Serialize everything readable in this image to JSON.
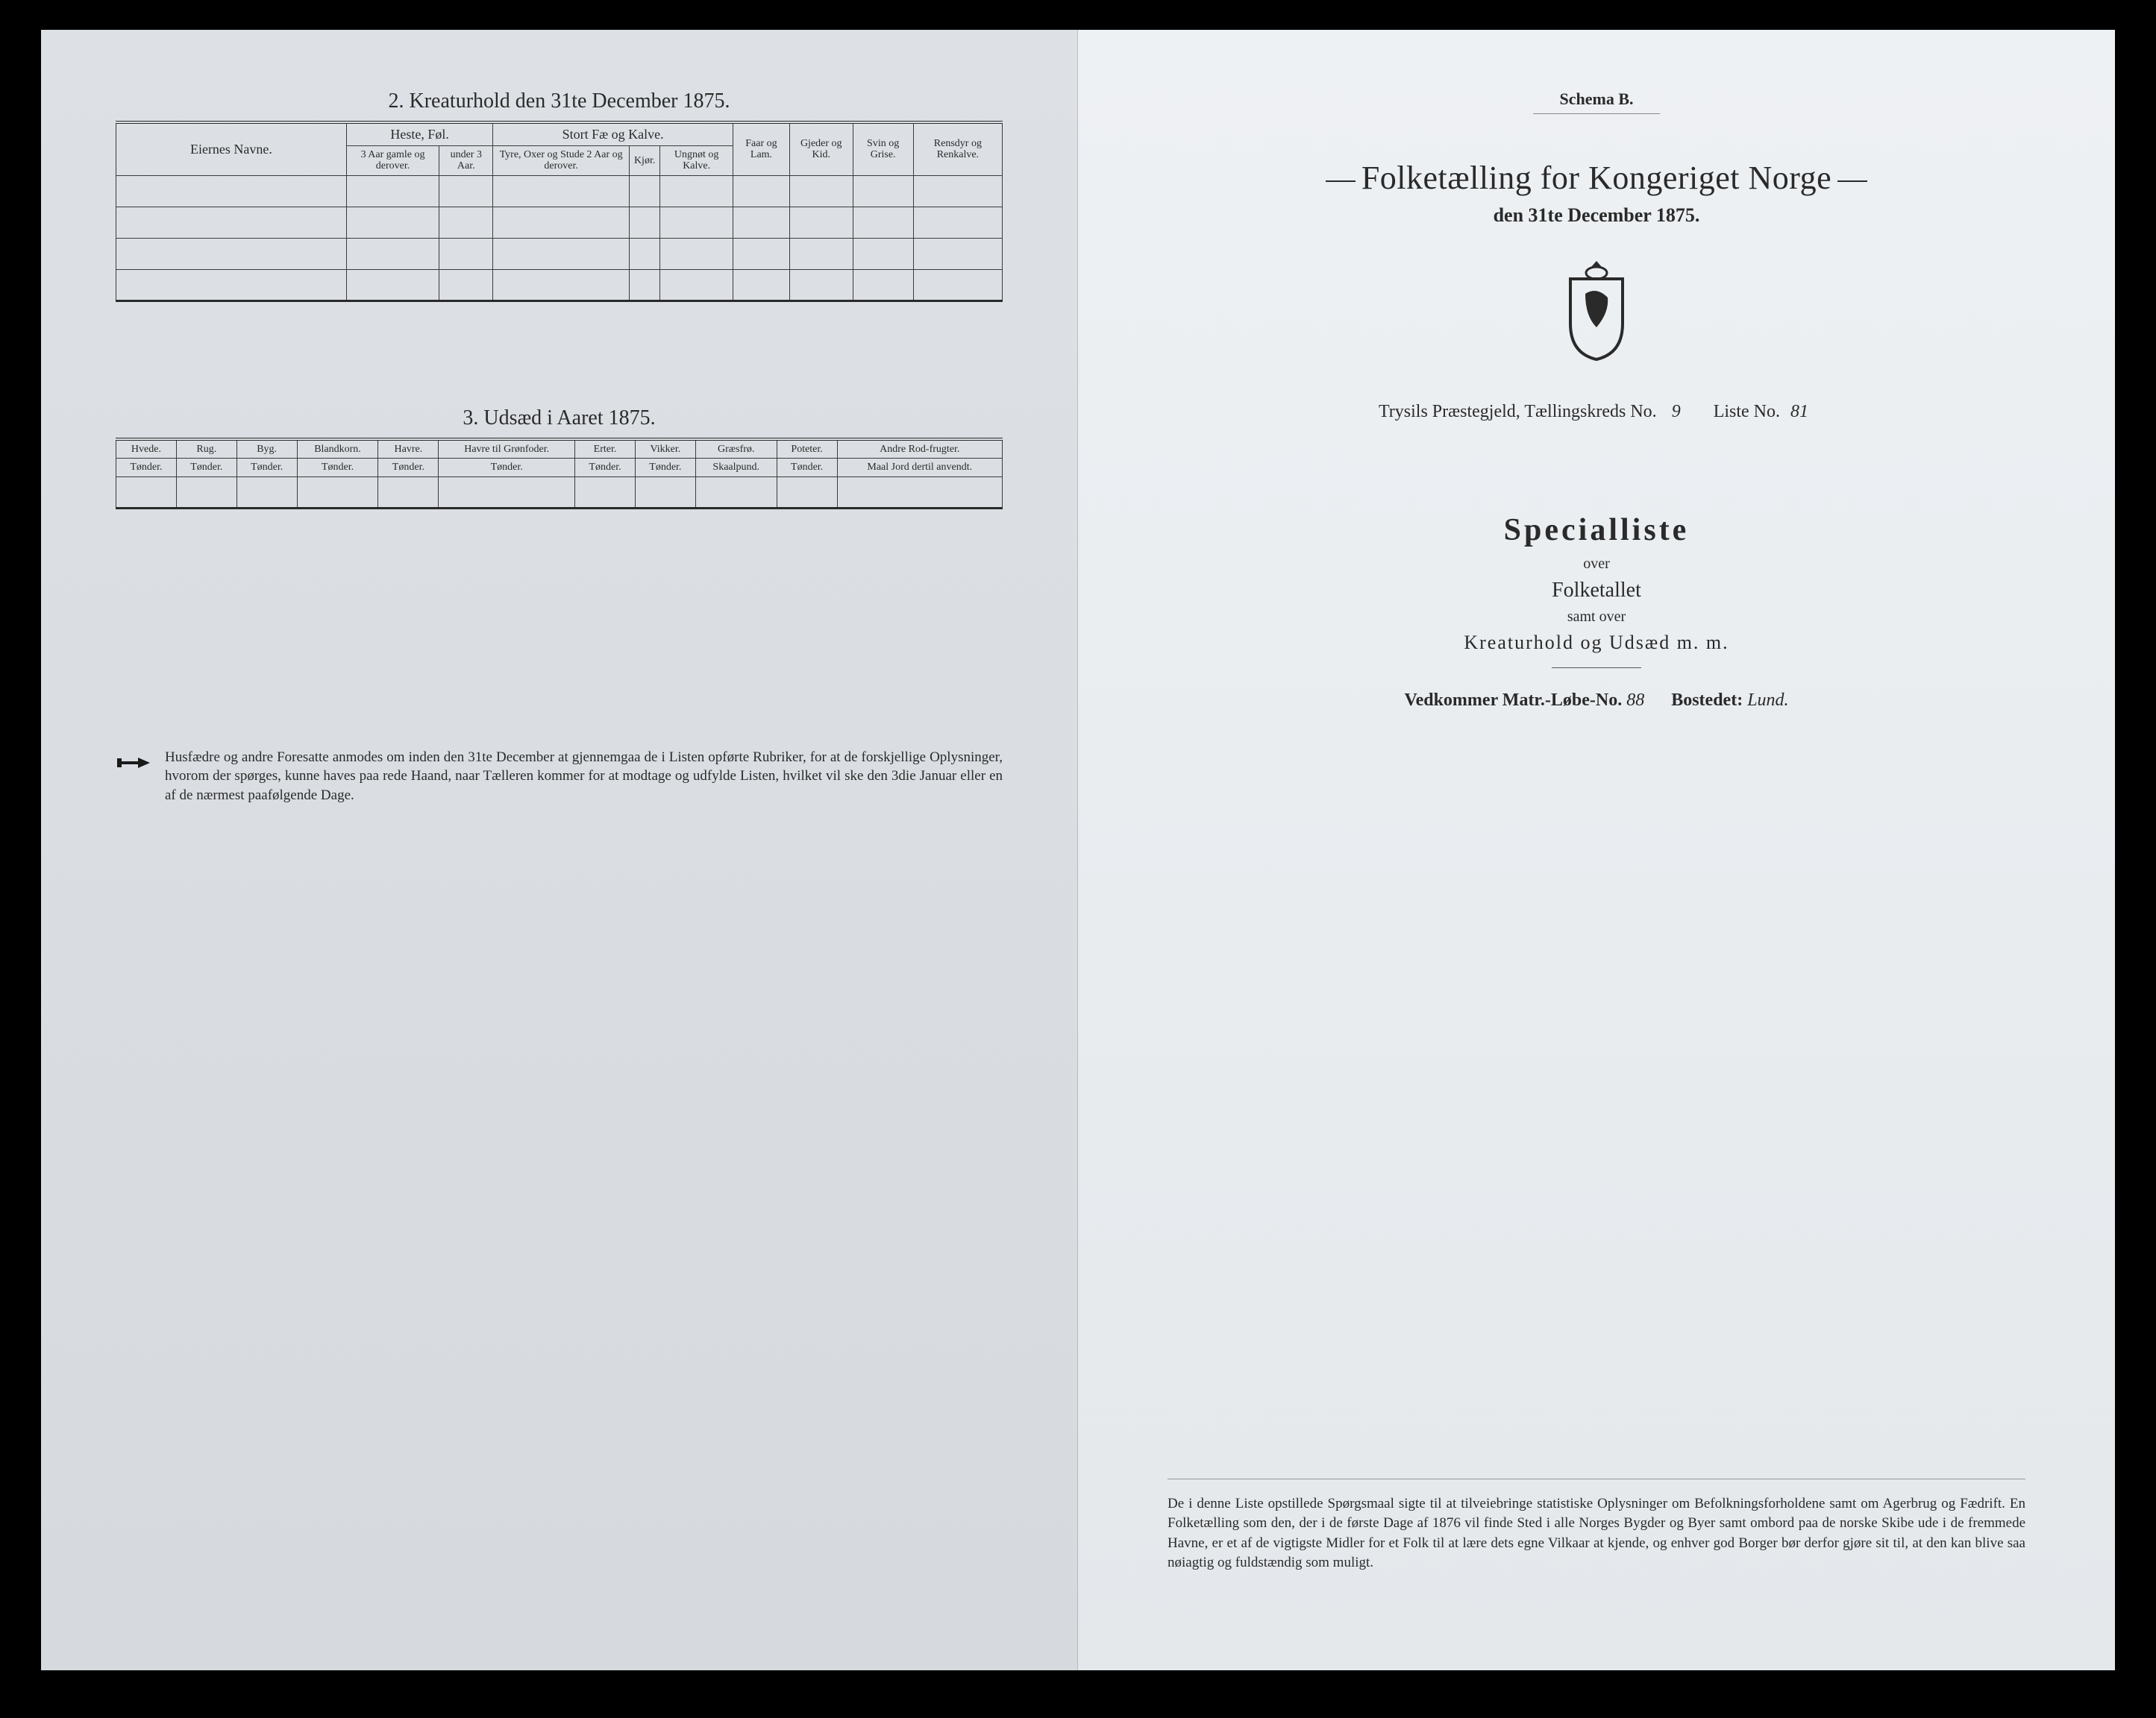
{
  "left": {
    "section2": {
      "title": "2. Kreaturhold den 31te December 1875.",
      "col_owner": "Eiernes Navne.",
      "grp_horses": "Heste, Føl.",
      "horses_a": "3 Aar gamle og derover.",
      "horses_b": "under 3 Aar.",
      "grp_cattle": "Stort Fæ og Kalve.",
      "cattle_a": "Tyre, Oxer og Stude 2 Aar og derover.",
      "cattle_b": "Kjør.",
      "cattle_c": "Ungnøt og Kalve.",
      "sheep": "Faar og Lam.",
      "goats": "Gjeder og Kid.",
      "pigs": "Svin og Grise.",
      "reindeer": "Rensdyr og Renkalve."
    },
    "section3": {
      "title": "3. Udsæd i Aaret 1875.",
      "cols": [
        {
          "h": "Hvede.",
          "u": "Tønder."
        },
        {
          "h": "Rug.",
          "u": "Tønder."
        },
        {
          "h": "Byg.",
          "u": "Tønder."
        },
        {
          "h": "Blandkorn.",
          "u": "Tønder."
        },
        {
          "h": "Havre.",
          "u": "Tønder."
        },
        {
          "h": "Havre til Grønfoder.",
          "u": "Tønder."
        },
        {
          "h": "Erter.",
          "u": "Tønder."
        },
        {
          "h": "Vikker.",
          "u": "Tønder."
        },
        {
          "h": "Græsfrø.",
          "u": "Skaalpund."
        },
        {
          "h": "Poteter.",
          "u": "Tønder."
        },
        {
          "h": "Andre Rod-frugter.",
          "u": "Maal Jord dertil anvendt."
        }
      ]
    },
    "footnote": "Husfædre og andre Foresatte anmodes om inden den 31te December at gjennemgaa de i Listen opførte Rubriker, for at de forskjellige Oplysninger, hvorom der spørges, kunne haves paa rede Haand, naar Tælleren kommer for at modtage og udfylde Listen, hvilket vil ske den 3die Januar eller en af de nærmest paafølgende Dage."
  },
  "right": {
    "schema": "Schema B.",
    "title": "Folketælling for Kongeriget Norge",
    "date": "den 31te December 1875.",
    "parish_prefix": "Trysils Præstegjeld, Tællingskreds No.",
    "kreds_no": "9",
    "list_label": "Liste No.",
    "list_no": "81",
    "spec_title": "Specialliste",
    "over1": "over",
    "folketallet": "Folketallet",
    "samt": "samt over",
    "kreatur": "Kreaturhold og Udsæd m. m.",
    "matr_label": "Vedkommer Matr.-Løbe-No.",
    "matr_no": "88",
    "bostedet_label": "Bostedet:",
    "bostedet": "Lund.",
    "footnote": "De i denne Liste opstillede Spørgsmaal sigte til at tilveiebringe statistiske Oplysninger om Befolkningsforholdene samt om Agerbrug og Fædrift. En Folketælling som den, der i de første Dage af 1876 vil finde Sted i alle Norges Bygder og Byer samt ombord paa de norske Skibe ude i de fremmede Havne, er et af de vigtigste Midler for et Folk til at lære dets egne Vilkaar at kjende, og enhver god Borger bør derfor gjøre sit til, at den kan blive saa nøiagtig og fuldstændig som muligt."
  }
}
